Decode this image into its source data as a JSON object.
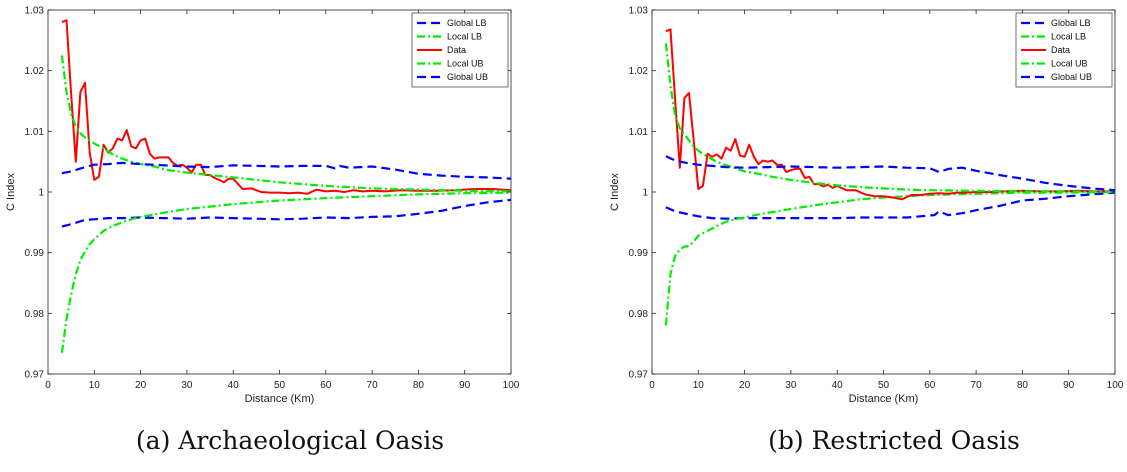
{
  "captions": [
    {
      "tag": "(a)",
      "text": "Archaeological Oasis"
    },
    {
      "tag": "(b)",
      "text": "Restricted Oasis"
    }
  ],
  "colors": {
    "global": "#0000ff",
    "local": "#00ee00",
    "data": "#ff0000"
  },
  "chart_data": [
    {
      "type": "line",
      "title": "",
      "xlabel": "Distance (Km)",
      "ylabel": "C Index",
      "xlim": [
        0,
        100
      ],
      "ylim": [
        0.97,
        1.03
      ],
      "xticks": [
        0,
        10,
        20,
        30,
        40,
        50,
        60,
        70,
        80,
        90,
        100
      ],
      "yticks": [
        0.97,
        0.98,
        0.99,
        1,
        1.01,
        1.02,
        1.03
      ],
      "ytick_labels": [
        "0.97",
        "0.98",
        "0.99",
        "1",
        "1.01",
        "1.02",
        "1.03"
      ],
      "legend": {
        "position": "top-right",
        "entries": [
          "Global LB",
          "Local LB",
          "Data",
          "Local UB",
          "Global UB"
        ]
      },
      "grid": false,
      "series": [
        {
          "name": "Global LB",
          "style": "dashed",
          "color": "#0000ff",
          "x": [
            3,
            5,
            8,
            10,
            13,
            16,
            20,
            25,
            30,
            35,
            40,
            45,
            50,
            55,
            60,
            65,
            70,
            75,
            80,
            85,
            90,
            95,
            100
          ],
          "y": [
            0.9943,
            0.9947,
            0.9954,
            0.9955,
            0.9957,
            0.9957,
            0.9958,
            0.9957,
            0.9956,
            0.9958,
            0.9957,
            0.9956,
            0.9955,
            0.9956,
            0.9958,
            0.9957,
            0.9959,
            0.996,
            0.9964,
            0.9969,
            0.9977,
            0.9983,
            0.9987
          ]
        },
        {
          "name": "Local LB",
          "style": "dashdot",
          "color": "#00ee00",
          "x": [
            3,
            4,
            5,
            6,
            7,
            8,
            9,
            10,
            12,
            14,
            16,
            18,
            20,
            23,
            26,
            30,
            35,
            40,
            45,
            50,
            55,
            60,
            70,
            80,
            90,
            100
          ],
          "y": [
            0.9735,
            0.979,
            0.9832,
            0.9864,
            0.9888,
            0.9902,
            0.9914,
            0.9922,
            0.9936,
            0.9944,
            0.995,
            0.9955,
            0.9959,
            0.9963,
            0.9967,
            0.9972,
            0.9976,
            0.998,
            0.9983,
            0.9986,
            0.9988,
            0.999,
            0.9993,
            0.9996,
            0.9998,
            0.9999
          ]
        },
        {
          "name": "Data",
          "style": "solid",
          "color": "#ff0000",
          "x": [
            3,
            4,
            5,
            6,
            7,
            8,
            9,
            10,
            11,
            12,
            13,
            14,
            15,
            16,
            17,
            18,
            19,
            20,
            21,
            22,
            23,
            24,
            25,
            26,
            27,
            28,
            29,
            30,
            31,
            32,
            33,
            34,
            35,
            36,
            37,
            38,
            39,
            40,
            42,
            44,
            46,
            48,
            50,
            52,
            54,
            56,
            58,
            60,
            62,
            64,
            66,
            68,
            70,
            73,
            76,
            80,
            84,
            88,
            92,
            96,
            100
          ],
          "y": [
            1.028,
            1.0283,
            1.016,
            1.005,
            1.0165,
            1.018,
            1.0065,
            1.002,
            1.0025,
            1.0078,
            1.0065,
            1.0072,
            1.0088,
            1.0085,
            1.0102,
            1.0075,
            1.0072,
            1.0085,
            1.0088,
            1.0063,
            1.0055,
            1.0057,
            1.0057,
            1.0057,
            1.0048,
            1.0043,
            1.0045,
            1.004,
            1.0032,
            1.0045,
            1.0045,
            1.0028,
            1.0028,
            1.0023,
            1.002,
            1.0016,
            1.0022,
            1.0022,
            1.0005,
            1.0006,
            1.0,
            0.9999,
            0.9999,
            0.9998,
            0.9999,
            0.9997,
            1.0004,
            1.0001,
            1.0002,
            1.0,
            1.0003,
            1.0001,
            1.0002,
            1.0001,
            1.0003,
            1.0002,
            1.0002,
            1.0003,
            1.0005,
            1.0005,
            1.0003
          ]
        },
        {
          "name": "Local UB",
          "style": "dashdot",
          "color": "#00ee00",
          "x": [
            3,
            4,
            5,
            6,
            7,
            8,
            9,
            10,
            12,
            14,
            16,
            18,
            20,
            23,
            26,
            30,
            35,
            40,
            45,
            50,
            55,
            60,
            70,
            80,
            90,
            100
          ],
          "y": [
            1.0225,
            1.0165,
            1.0128,
            1.0108,
            1.0097,
            1.009,
            1.0085,
            1.008,
            1.0072,
            1.0062,
            1.0055,
            1.005,
            1.0046,
            1.0042,
            1.0036,
            1.0032,
            1.0028,
            1.0024,
            1.002,
            1.0016,
            1.0013,
            1.001,
            1.0006,
            1.0004,
            1.0002,
            1.0001
          ]
        },
        {
          "name": "Global UB",
          "style": "dashed",
          "color": "#0000ff",
          "x": [
            3,
            5,
            8,
            10,
            13,
            16,
            20,
            25,
            30,
            35,
            40,
            45,
            50,
            55,
            60,
            62,
            63,
            65,
            70,
            75,
            80,
            85,
            90,
            95,
            100
          ],
          "y": [
            1.0031,
            1.0034,
            1.0041,
            1.0045,
            1.0046,
            1.0048,
            1.0046,
            1.0044,
            1.0042,
            1.0041,
            1.0044,
            1.0043,
            1.0042,
            1.0043,
            1.0043,
            1.0039,
            1.0043,
            1.004,
            1.0042,
            1.0037,
            1.003,
            1.0027,
            1.0025,
            1.0024,
            1.0022
          ]
        }
      ]
    },
    {
      "type": "line",
      "title": "",
      "xlabel": "Distance (Km)",
      "ylabel": "C Index",
      "xlim": [
        0,
        100
      ],
      "ylim": [
        0.97,
        1.03
      ],
      "xticks": [
        0,
        10,
        20,
        30,
        40,
        50,
        60,
        70,
        80,
        90,
        100
      ],
      "yticks": [
        0.97,
        0.98,
        0.99,
        1,
        1.01,
        1.02,
        1.03
      ],
      "ytick_labels": [
        "0.97",
        "0.98",
        "0.99",
        "1",
        "1.01",
        "1.02",
        "1.03"
      ],
      "legend": {
        "position": "top-right",
        "entries": [
          "Global LB",
          "Local LB",
          "Data",
          "Local UB",
          "Global UB"
        ]
      },
      "grid": false,
      "series": [
        {
          "name": "Global LB",
          "style": "dashed",
          "color": "#0000ff",
          "x": [
            3,
            5,
            8,
            10,
            13,
            16,
            20,
            25,
            30,
            35,
            40,
            45,
            50,
            55,
            58,
            61,
            62,
            64,
            67,
            70,
            75,
            80,
            85,
            90,
            95,
            100
          ],
          "y": [
            0.9975,
            0.9968,
            0.9963,
            0.996,
            0.9957,
            0.9956,
            0.9957,
            0.9957,
            0.9957,
            0.9957,
            0.9957,
            0.9958,
            0.9958,
            0.9958,
            0.996,
            0.9962,
            0.9968,
            0.9962,
            0.9965,
            0.997,
            0.9977,
            0.9986,
            0.9989,
            0.9993,
            0.9996,
            0.9999
          ]
        },
        {
          "name": "Local LB",
          "style": "dashdot",
          "color": "#00ee00",
          "x": [
            3,
            4,
            5,
            6,
            7,
            8,
            9,
            10,
            12,
            14,
            16,
            18,
            20,
            23,
            26,
            30,
            35,
            40,
            45,
            50,
            55,
            60,
            70,
            80,
            90,
            100
          ],
          "y": [
            0.978,
            0.9865,
            0.9895,
            0.9905,
            0.991,
            0.9911,
            0.9918,
            0.9928,
            0.9936,
            0.9944,
            0.9951,
            0.9955,
            0.9958,
            0.9963,
            0.9967,
            0.9972,
            0.9978,
            0.9983,
            0.9988,
            0.9991,
            0.9993,
            0.9995,
            0.9997,
            0.9999,
            0.9999,
            1.0
          ]
        },
        {
          "name": "Data",
          "style": "solid",
          "color": "#ff0000",
          "x": [
            3,
            4,
            5,
            6,
            7,
            8,
            9,
            10,
            11,
            12,
            13,
            14,
            15,
            16,
            17,
            18,
            19,
            20,
            21,
            22,
            23,
            24,
            25,
            26,
            27,
            28,
            29,
            30,
            31,
            32,
            33,
            34,
            35,
            36,
            37,
            38,
            39,
            40,
            42,
            44,
            46,
            48,
            50,
            52,
            54,
            56,
            58,
            60,
            62,
            64,
            66,
            68,
            70,
            73,
            76,
            80,
            84,
            88,
            92,
            96,
            100
          ],
          "y": [
            1.0265,
            1.0268,
            1.015,
            1.004,
            1.0155,
            1.0163,
            1.0085,
            1.0005,
            1.001,
            1.0063,
            1.0058,
            1.0062,
            1.0055,
            1.0073,
            1.0068,
            1.0087,
            1.006,
            1.0058,
            1.0078,
            1.0058,
            1.0046,
            1.0052,
            1.005,
            1.0052,
            1.0045,
            1.0045,
            1.0033,
            1.0036,
            1.0038,
            1.0038,
            1.0023,
            1.0025,
            1.0013,
            1.0013,
            1.0009,
            1.0012,
            1.0007,
            1.001,
            1.0003,
            1.0003,
            0.9996,
            0.9993,
            0.9993,
            0.9991,
            0.9988,
            0.9995,
            0.9995,
            0.9997,
            0.9998,
            0.9997,
            0.9999,
            0.9999,
            1.0,
            1.0,
            1.0001,
            1.0002,
            1.0001,
            1.0001,
            1.0002,
            1.0001,
            1.0001
          ]
        },
        {
          "name": "Local UB",
          "style": "dashdot",
          "color": "#00ee00",
          "x": [
            3,
            4,
            5,
            6,
            7,
            8,
            9,
            10,
            12,
            14,
            16,
            18,
            20,
            23,
            26,
            30,
            35,
            40,
            45,
            50,
            55,
            60,
            70,
            80,
            90,
            100
          ],
          "y": [
            1.0245,
            1.0175,
            1.0125,
            1.0105,
            1.0095,
            1.0085,
            1.0075,
            1.0068,
            1.0058,
            1.005,
            1.0044,
            1.0039,
            1.0034,
            1.003,
            1.0025,
            1.002,
            1.0015,
            1.0011,
            1.0008,
            1.0006,
            1.0004,
            1.0003,
            1.0002,
            1.0001,
            1.0001,
            1.0
          ]
        },
        {
          "name": "Global UB",
          "style": "dashed",
          "color": "#0000ff",
          "x": [
            3,
            5,
            8,
            10,
            13,
            16,
            20,
            25,
            30,
            35,
            40,
            45,
            50,
            55,
            60,
            62,
            64,
            67,
            70,
            75,
            80,
            85,
            90,
            95,
            100
          ],
          "y": [
            1.0059,
            1.0052,
            1.0047,
            1.0045,
            1.0043,
            1.0041,
            1.004,
            1.0041,
            1.0042,
            1.0041,
            1.004,
            1.0041,
            1.0042,
            1.004,
            1.0039,
            1.0033,
            1.0038,
            1.004,
            1.0035,
            1.0028,
            1.0022,
            1.0015,
            1.001,
            1.0006,
            1.0003
          ]
        }
      ]
    }
  ]
}
